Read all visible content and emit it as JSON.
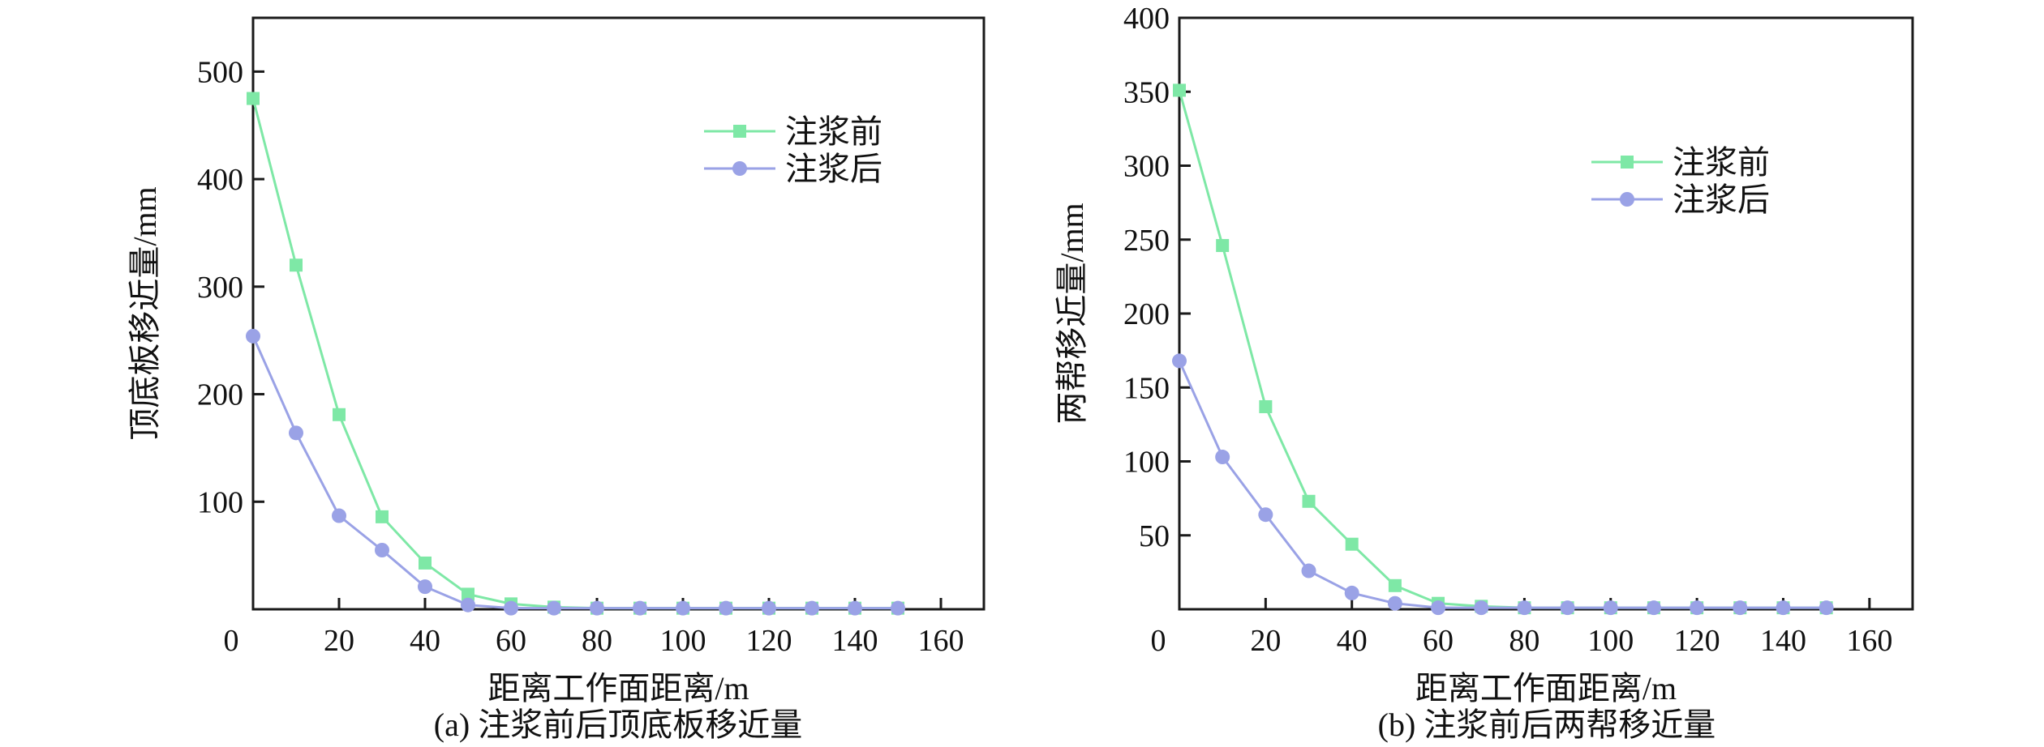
{
  "colors": {
    "before": "#7ee8a6",
    "after": "#9aa2e6",
    "axis": "#1a1a1a",
    "text": "#111111"
  },
  "chart_data": [
    {
      "type": "line",
      "title": "(a) 注浆前后顶底板移近量",
      "xlabel": "距离工作面距离/m",
      "ylabel": "顶底板移近量/mm",
      "xlim": [
        0,
        170
      ],
      "ylim": [
        0,
        550
      ],
      "x_ticks": [
        0,
        20,
        40,
        60,
        80,
        100,
        120,
        140,
        160
      ],
      "y_ticks": [
        100,
        200,
        300,
        400,
        500
      ],
      "legend_position": "upper-right",
      "series": [
        {
          "name": "注浆前",
          "marker": "square",
          "x": [
            0,
            10,
            20,
            30,
            40,
            50,
            60,
            70,
            80,
            90,
            100,
            110,
            120,
            130,
            140,
            150
          ],
          "y": [
            475,
            320,
            181,
            86,
            43,
            14,
            5,
            2,
            1,
            1,
            1,
            1,
            1,
            1,
            1,
            1
          ]
        },
        {
          "name": "注浆后",
          "marker": "circle",
          "x": [
            0,
            10,
            20,
            30,
            40,
            50,
            60,
            70,
            80,
            90,
            100,
            110,
            120,
            130,
            140,
            150
          ],
          "y": [
            254,
            164,
            87,
            55,
            21,
            4,
            1,
            1,
            1,
            1,
            1,
            1,
            1,
            1,
            1,
            1
          ]
        }
      ]
    },
    {
      "type": "line",
      "title": "(b) 注浆前后两帮移近量",
      "xlabel": "距离工作面距离/m",
      "ylabel": "两帮移近量/mm",
      "xlim": [
        0,
        170
      ],
      "ylim": [
        0,
        400
      ],
      "x_ticks": [
        0,
        20,
        40,
        60,
        80,
        100,
        120,
        140,
        160
      ],
      "y_ticks": [
        50,
        100,
        150,
        200,
        250,
        300,
        350,
        400
      ],
      "legend_position": "upper-right",
      "series": [
        {
          "name": "注浆前",
          "marker": "square",
          "x": [
            0,
            10,
            20,
            30,
            40,
            50,
            60,
            70,
            80,
            90,
            100,
            110,
            120,
            130,
            140,
            150
          ],
          "y": [
            351,
            246,
            137,
            73,
            44,
            16,
            4,
            2,
            1,
            1,
            1,
            1,
            1,
            1,
            1,
            1
          ]
        },
        {
          "name": "注浆后",
          "marker": "circle",
          "x": [
            0,
            10,
            20,
            30,
            40,
            50,
            60,
            70,
            80,
            90,
            100,
            110,
            120,
            130,
            140,
            150
          ],
          "y": [
            168,
            103,
            64,
            26,
            11,
            4,
            1,
            1,
            1,
            1,
            1,
            1,
            1,
            1,
            1,
            1
          ]
        }
      ]
    }
  ]
}
